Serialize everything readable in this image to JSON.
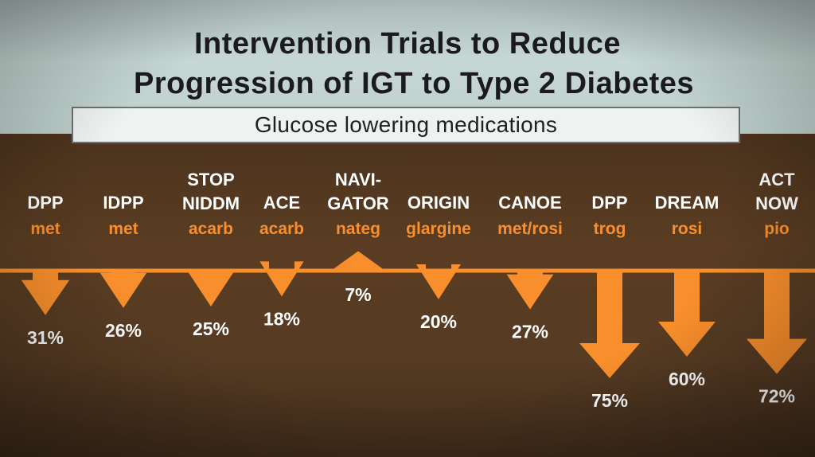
{
  "slide": {
    "title_line1": "Intervention Trials to Reduce",
    "title_line2": "Progression of IGT to Type 2 Diabetes",
    "subtitle": "Glucose lowering medications"
  },
  "colors": {
    "top_band": "#bfd1cd",
    "panel": "#563b22",
    "arrow": "#f98f2c",
    "drug_label": "#f98f2c",
    "trial_label": "#ffffff",
    "title_text": "#1b1b1f"
  },
  "chart_data": {
    "type": "bar",
    "title": "",
    "categories": [
      [
        "DPP"
      ],
      [
        "IDPP"
      ],
      [
        "STOP",
        "NIDDM"
      ],
      [
        "ACE"
      ],
      [
        "NAVI-",
        "GATOR"
      ],
      [
        "ORIGIN"
      ],
      [
        "CANOE"
      ],
      [
        "DPP"
      ],
      [
        "DREAM"
      ],
      [
        "ACT",
        "NOW"
      ]
    ],
    "drugs": [
      "met",
      "met",
      "acarb",
      "acarb",
      "nateg",
      "glargine",
      "met/rosi",
      "trog",
      "rosi",
      "pio"
    ],
    "values": [
      -31,
      -26,
      -25,
      -18,
      7,
      -20,
      -27,
      -75,
      -60,
      -72
    ],
    "value_labels": [
      "31%",
      "26%",
      "25%",
      "18%",
      "7%",
      "20%",
      "27%",
      "75%",
      "60%",
      "72%"
    ],
    "series": [
      {
        "name": "",
        "values": [
          -31,
          -26,
          -25,
          -18,
          7,
          -20,
          -27,
          -75,
          -60,
          -72
        ]
      }
    ],
    "ylabel": "",
    "xlabel": "",
    "ylim": [
      -80,
      10
    ],
    "grid": false,
    "legend": "none"
  }
}
